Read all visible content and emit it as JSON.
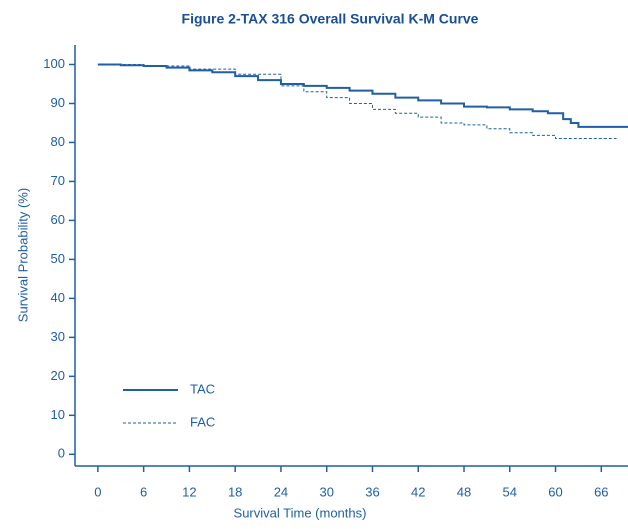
{
  "chart_data": {
    "type": "line",
    "title": "Figure 2-TAX 316 Overall Survival K-M Curve",
    "x_label": "Survival Time (months)",
    "y_label": "Survival Probability (%)",
    "xlim": [
      -3,
      69.5
    ],
    "ylim": [
      -3,
      105
    ],
    "xticks": [
      0,
      6,
      12,
      18,
      24,
      30,
      36,
      42,
      48,
      54,
      60,
      66
    ],
    "yticks": [
      0,
      10,
      20,
      30,
      40,
      50,
      60,
      70,
      80,
      90,
      100
    ],
    "step": true,
    "series": [
      {
        "name": "TAC",
        "color": "#1f5fa6",
        "style": "solid",
        "x": [
          0,
          3,
          6,
          9,
          12,
          15,
          18,
          21,
          24,
          27,
          30,
          33,
          36,
          39,
          42,
          45,
          48,
          51,
          54,
          57,
          59,
          61,
          62,
          63,
          69.5
        ],
        "values": [
          100,
          99.8,
          99.6,
          99.2,
          98.5,
          98,
          97,
          96,
          95,
          94.5,
          94,
          93.3,
          92.5,
          91.5,
          90.8,
          90,
          89.2,
          89,
          88.5,
          88,
          87.5,
          86,
          85,
          84,
          84
        ]
      },
      {
        "name": "FAC",
        "color": "#1f5fa6",
        "style": "dashed",
        "x": [
          0,
          6,
          12,
          18,
          24,
          27,
          30,
          33,
          36,
          39,
          42,
          45,
          48,
          51,
          54,
          57,
          60,
          68
        ],
        "values": [
          100,
          99.6,
          98.8,
          97.5,
          94.5,
          93,
          91.5,
          90,
          88.5,
          87.5,
          86.5,
          85,
          84.5,
          83.5,
          82.5,
          81.8,
          81,
          81
        ]
      }
    ]
  }
}
